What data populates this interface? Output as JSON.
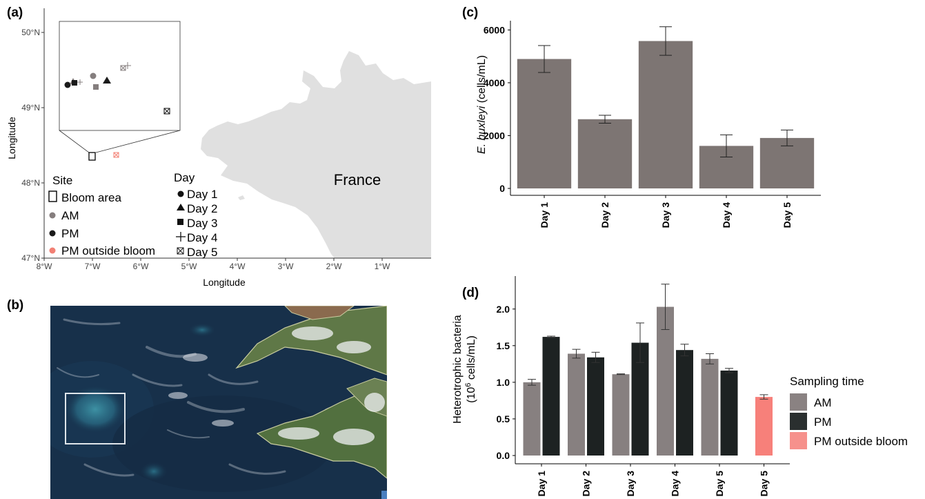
{
  "panels": {
    "a": "(a)",
    "b": "(b)",
    "c": "(c)",
    "d": "(d)"
  },
  "map": {
    "ylabel": "Longitude",
    "xlabel": "Longitude",
    "y_ticks": [
      "50°N",
      "49°N",
      "48°N",
      "47°N"
    ],
    "x_ticks": [
      "8°W",
      "7°W",
      "6°W",
      "5°W",
      "4°W",
      "3°W",
      "2°W",
      "1°W"
    ],
    "country_label": "France",
    "land_color": "#e0e0e0",
    "legend_site_title": "Site",
    "legend_site": [
      "Bloom area",
      "AM",
      "PM",
      "PM outside bloom"
    ],
    "legend_day_title": "Day",
    "legend_day": [
      "Day 1",
      "Day 2",
      "Day 3",
      "Day 4",
      "Day 5"
    ],
    "colors": {
      "AM": "#857e7e",
      "PM": "#1a1a1a",
      "outside": "#f28074"
    }
  },
  "chart_data": [
    {
      "type": "bar",
      "panel": "c",
      "categories": [
        "Day 1",
        "Day 2",
        "Day 3",
        "Day 4",
        "Day 5"
      ],
      "values": [
        4900,
        2620,
        5580,
        1610,
        1910
      ],
      "errors": [
        510,
        150,
        540,
        420,
        300
      ],
      "ylabel_italic": "E. huxleyi",
      "ylabel_rest": " (cells/mL)",
      "yticks": [
        "6000",
        "4000",
        "2000",
        "0"
      ],
      "ylim": [
        0,
        6350
      ],
      "color": "#7d7573"
    },
    {
      "type": "bar",
      "panel": "d",
      "categories": [
        "Day 1",
        "Day 2",
        "Day 3",
        "Day 4",
        "Day 5",
        "Day 5"
      ],
      "series": [
        {
          "name": "AM",
          "values": [
            1.0,
            1.39,
            1.11,
            2.03,
            1.32,
            null
          ],
          "errors": [
            0.04,
            0.06,
            0.005,
            0.31,
            0.07,
            null
          ]
        },
        {
          "name": "PM",
          "values": [
            1.62,
            1.34,
            1.54,
            1.44,
            1.16,
            null
          ],
          "errors": [
            0.01,
            0.07,
            0.27,
            0.08,
            0.03,
            null
          ]
        },
        {
          "name": "PM outside bloom",
          "values": [
            null,
            null,
            null,
            null,
            null,
            0.8
          ],
          "errors": [
            null,
            null,
            null,
            null,
            null,
            0.03
          ]
        }
      ],
      "ylabel_line1": "Heterotrophic bacteria",
      "ylabel_line2a": "(10",
      "ylabel_sup": "6",
      "ylabel_line2b": " cells/mL)",
      "yticks": [
        "2.0",
        "1.5",
        "1.0",
        "0.5",
        "0.0"
      ],
      "ylim": [
        0,
        2.45
      ],
      "colors": [
        "#878080",
        "#1d2222",
        "#f7807a"
      ],
      "legend_title": "Sampling time",
      "legend": [
        "AM",
        "PM",
        "PM outside bloom"
      ],
      "legend_colors": [
        "#8a8282",
        "#2a2f2f",
        "#f6918c"
      ]
    }
  ]
}
